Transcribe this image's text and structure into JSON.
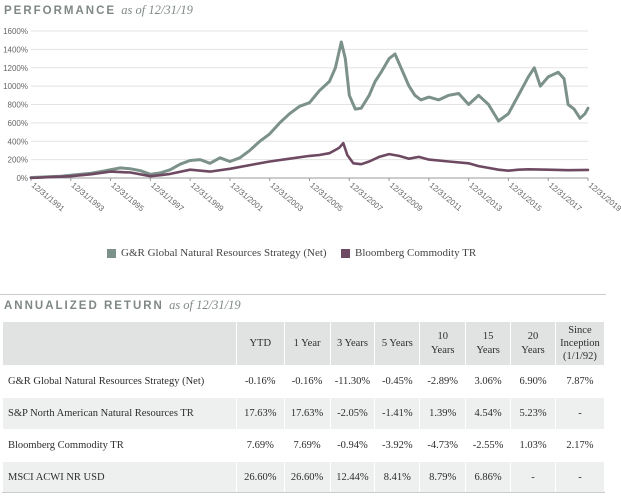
{
  "performance": {
    "title": "PERFORMANCE",
    "as_of": "as of 12/31/19"
  },
  "chart_data": {
    "type": "line",
    "title": "PERFORMANCE as of 12/31/19",
    "xlabel": "",
    "ylabel": "",
    "x_ticks": [
      "12/31/1991",
      "12/31/1993",
      "12/31/1995",
      "12/31/1997",
      "12/31/1999",
      "12/31/2001",
      "12/31/2003",
      "12/31/2005",
      "12/31/2007",
      "12/31/2009",
      "12/31/2011",
      "12/31/2013",
      "12/31/2015",
      "12/31/2017",
      "12/31/2019"
    ],
    "y_ticks": [
      "0%",
      "200%",
      "400%",
      "600%",
      "800%",
      "1000%",
      "1200%",
      "1400%",
      "1600%"
    ],
    "xlim": [
      1992.0,
      2020.0
    ],
    "ylim": [
      0,
      1600
    ],
    "series": [
      {
        "name": "G&R Global Natural Resources Strategy (Net)",
        "color": "#7b918a",
        "points": [
          [
            1992.0,
            5
          ],
          [
            1992.5,
            10
          ],
          [
            1993.0,
            15
          ],
          [
            1993.5,
            20
          ],
          [
            1994.0,
            30
          ],
          [
            1994.5,
            40
          ],
          [
            1995.0,
            50
          ],
          [
            1995.5,
            70
          ],
          [
            1996.0,
            90
          ],
          [
            1996.5,
            110
          ],
          [
            1997.0,
            100
          ],
          [
            1997.5,
            80
          ],
          [
            1998.0,
            40
          ],
          [
            1998.5,
            55
          ],
          [
            1999.0,
            90
          ],
          [
            1999.5,
            150
          ],
          [
            2000.0,
            190
          ],
          [
            2000.5,
            200
          ],
          [
            2001.0,
            160
          ],
          [
            2001.5,
            220
          ],
          [
            2002.0,
            180
          ],
          [
            2002.5,
            220
          ],
          [
            2003.0,
            300
          ],
          [
            2003.5,
            400
          ],
          [
            2004.0,
            480
          ],
          [
            2004.5,
            600
          ],
          [
            2005.0,
            700
          ],
          [
            2005.5,
            780
          ],
          [
            2006.0,
            820
          ],
          [
            2006.5,
            950
          ],
          [
            2007.0,
            1050
          ],
          [
            2007.3,
            1200
          ],
          [
            2007.6,
            1480
          ],
          [
            2007.8,
            1300
          ],
          [
            2008.0,
            900
          ],
          [
            2008.3,
            750
          ],
          [
            2008.6,
            760
          ],
          [
            2009.0,
            900
          ],
          [
            2009.3,
            1050
          ],
          [
            2009.6,
            1150
          ],
          [
            2010.0,
            1300
          ],
          [
            2010.3,
            1350
          ],
          [
            2010.6,
            1200
          ],
          [
            2011.0,
            1000
          ],
          [
            2011.3,
            900
          ],
          [
            2011.6,
            850
          ],
          [
            2012.0,
            880
          ],
          [
            2012.5,
            850
          ],
          [
            2013.0,
            900
          ],
          [
            2013.5,
            920
          ],
          [
            2014.0,
            800
          ],
          [
            2014.5,
            900
          ],
          [
            2015.0,
            800
          ],
          [
            2015.5,
            620
          ],
          [
            2016.0,
            700
          ],
          [
            2016.5,
            900
          ],
          [
            2017.0,
            1100
          ],
          [
            2017.3,
            1200
          ],
          [
            2017.6,
            1000
          ],
          [
            2018.0,
            1100
          ],
          [
            2018.5,
            1150
          ],
          [
            2018.8,
            1080
          ],
          [
            2019.0,
            800
          ],
          [
            2019.3,
            750
          ],
          [
            2019.6,
            650
          ],
          [
            2019.85,
            700
          ],
          [
            2020.0,
            760
          ]
        ]
      },
      {
        "name": "Bloomberg Commodity TR",
        "color": "#6e4a62",
        "points": [
          [
            1992.0,
            0
          ],
          [
            1993.0,
            10
          ],
          [
            1994.0,
            20
          ],
          [
            1995.0,
            40
          ],
          [
            1996.0,
            70
          ],
          [
            1997.0,
            60
          ],
          [
            1998.0,
            20
          ],
          [
            1998.5,
            30
          ],
          [
            1999.0,
            45
          ],
          [
            2000.0,
            90
          ],
          [
            2001.0,
            70
          ],
          [
            2002.0,
            100
          ],
          [
            2003.0,
            140
          ],
          [
            2004.0,
            180
          ],
          [
            2005.0,
            210
          ],
          [
            2006.0,
            240
          ],
          [
            2006.5,
            250
          ],
          [
            2007.0,
            270
          ],
          [
            2007.5,
            330
          ],
          [
            2007.7,
            380
          ],
          [
            2007.9,
            250
          ],
          [
            2008.2,
            160
          ],
          [
            2008.6,
            150
          ],
          [
            2009.0,
            180
          ],
          [
            2009.5,
            230
          ],
          [
            2010.0,
            260
          ],
          [
            2010.5,
            240
          ],
          [
            2011.0,
            210
          ],
          [
            2011.5,
            230
          ],
          [
            2012.0,
            200
          ],
          [
            2013.0,
            180
          ],
          [
            2014.0,
            160
          ],
          [
            2014.5,
            130
          ],
          [
            2015.0,
            110
          ],
          [
            2015.5,
            90
          ],
          [
            2016.0,
            80
          ],
          [
            2016.5,
            90
          ],
          [
            2017.0,
            95
          ],
          [
            2018.0,
            90
          ],
          [
            2019.0,
            85
          ],
          [
            2020.0,
            88
          ]
        ]
      }
    ]
  },
  "legend": {
    "entries": [
      {
        "label": "G&R Global Natural Resources Strategy (Net)",
        "color": "#7b918a"
      },
      {
        "label": "Bloomberg Commodity TR",
        "color": "#6e4a62"
      }
    ]
  },
  "returns": {
    "title": "ANNUALIZED RETURN",
    "as_of": "as of 12/31/19",
    "headers": [
      "",
      "YTD",
      "1 Year",
      "3 Years",
      "5 Years",
      "10 Years",
      "15 Years",
      "20 Years",
      "Since Inception (1/1/92)"
    ],
    "rows": [
      {
        "name": "G&R Global Natural Resources Strategy (Net)",
        "values": [
          "-0.16%",
          "-0.16%",
          "-11.30%",
          "-0.45%",
          "-2.89%",
          "3.06%",
          "6.90%",
          "7.87%"
        ]
      },
      {
        "name": "S&P North American Natural Resources TR",
        "values": [
          "17.63%",
          "17.63%",
          "-2.05%",
          "-1.41%",
          "1.39%",
          "4.54%",
          "5.23%",
          "-"
        ]
      },
      {
        "name": "Bloomberg Commodity TR",
        "values": [
          "7.69%",
          "7.69%",
          "-0.94%",
          "-3.92%",
          "-4.73%",
          "-2.55%",
          "1.03%",
          "2.17%"
        ]
      },
      {
        "name": "MSCI ACWI NR USD",
        "values": [
          "26.60%",
          "26.60%",
          "12.44%",
          "8.41%",
          "8.79%",
          "6.86%",
          "-",
          "-"
        ]
      }
    ]
  }
}
